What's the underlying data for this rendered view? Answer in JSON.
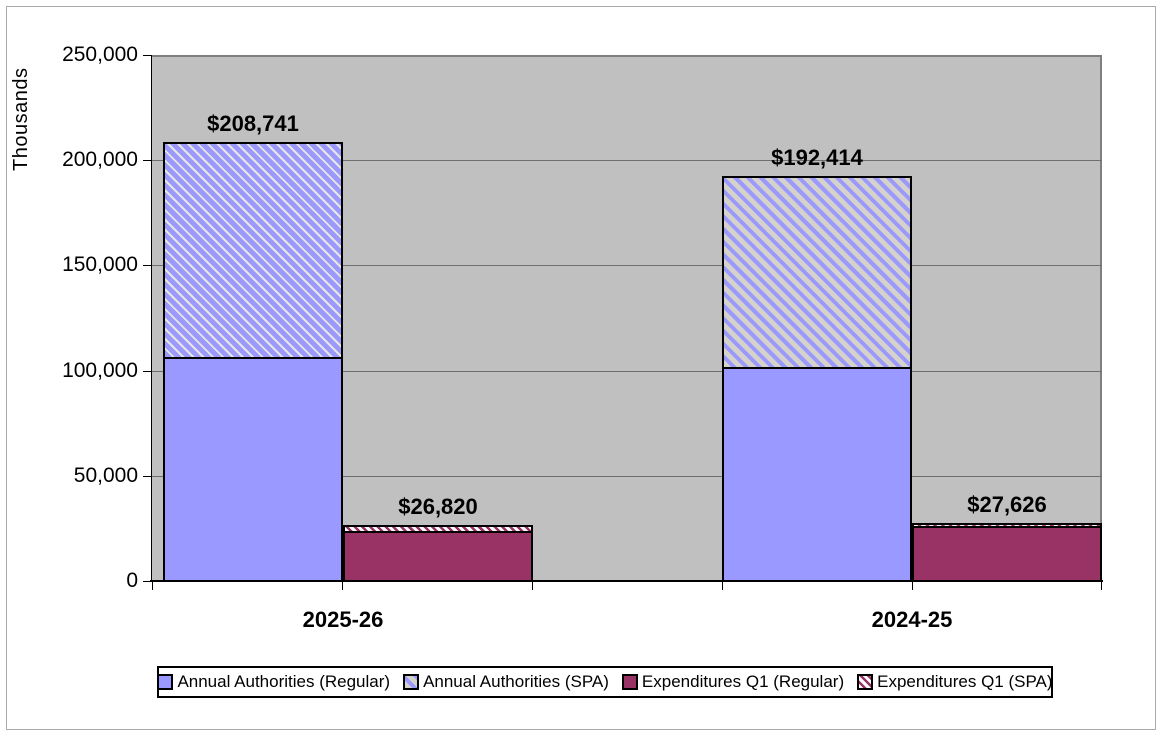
{
  "chart_data": {
    "type": "bar",
    "subtype": "stacked-clustered",
    "title": "",
    "xlabel": "",
    "ylabel": "Thousands",
    "ylim": [
      0,
      250000
    ],
    "ytick_interval": 50000,
    "y_ticks": [
      {
        "value": 250000,
        "label": "250,000"
      },
      {
        "value": 200000,
        "label": "200,000"
      },
      {
        "value": 150000,
        "label": "150,000"
      },
      {
        "value": 100000,
        "label": "100,000"
      },
      {
        "value": 50000,
        "label": "50,000"
      },
      {
        "value": 0,
        "label": "0"
      }
    ],
    "categories": [
      "2025-26",
      "2024-25"
    ],
    "series": [
      {
        "name": "Annual Authorities (Regular)",
        "values": [
          105500,
          100700
        ],
        "estimated": true
      },
      {
        "name": "Annual Authorities (SPA)",
        "values": [
          103241,
          91714
        ],
        "estimated": true
      },
      {
        "name": "Expenditures Q1 (Regular)",
        "values": [
          22600,
          25100
        ],
        "estimated": true
      },
      {
        "name": "Expenditures Q1 (SPA)",
        "values": [
          4220,
          2526
        ],
        "estimated": true
      }
    ],
    "bars": [
      {
        "category": "2025-26",
        "stack": "annual_authorities",
        "total": 208741,
        "label": "$208,741",
        "regular": 105500,
        "spa": 103241
      },
      {
        "category": "2025-26",
        "stack": "expenditures_q1",
        "total": 26820,
        "label": "$26,820",
        "regular": 22600,
        "spa": 4220
      },
      {
        "category": "2024-25",
        "stack": "annual_authorities",
        "total": 192414,
        "label": "$192,414",
        "regular": 100700,
        "spa": 91714
      },
      {
        "category": "2024-25",
        "stack": "expenditures_q1",
        "total": 27626,
        "label": "$27,626",
        "regular": 25100,
        "spa": 2526
      }
    ],
    "note": "Totals read from data labels; regular/SPA split estimated from gridlines",
    "grid": true,
    "legend_position": "bottom",
    "plot_background": "#C0C0C0"
  },
  "legend": {
    "items": [
      {
        "label": "Annual Authorities (Regular)",
        "swatch": "solid-blue"
      },
      {
        "label": "Annual Authorities (SPA)",
        "swatch": "hatch-blue"
      },
      {
        "label": "Expenditures Q1 (Regular)",
        "swatch": "solid-magenta"
      },
      {
        "label": "Expenditures Q1 (SPA)",
        "swatch": "hatch-magenta"
      }
    ]
  },
  "colors": {
    "annual_regular": "#9999FF",
    "expenditures_regular": "#993366",
    "plot_background": "#C0C0C0",
    "gridline": "#6F6F6F",
    "bar_border": "#000000"
  }
}
